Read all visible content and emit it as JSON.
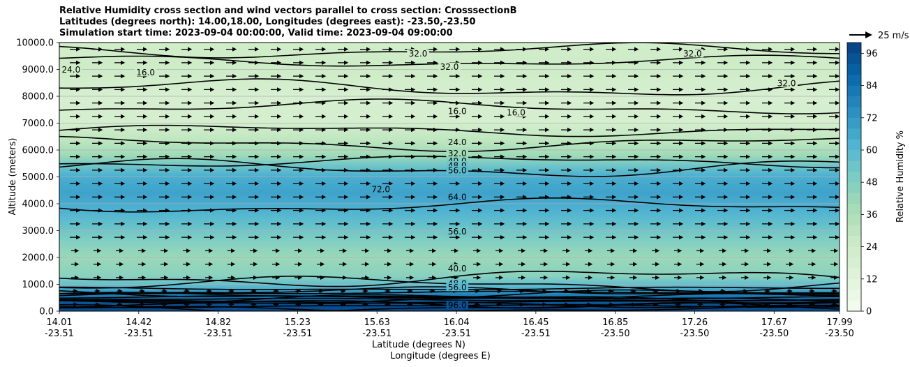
{
  "chart_data": {
    "type": "contour",
    "title_lines": [
      "Relative Humidity cross section and wind vectors parallel to cross section: CrosssectionB",
      "Latitudes (degrees north): 14.00,18.00, Longitudes (degrees east): -23.50,-23.50",
      "Simulation start time: 2023-09-04 00:00:00, Valid time: 2023-09-04 09:00:00"
    ],
    "ylabel": "Altitude (meters)",
    "xlabel_lines": [
      "Latitude (degrees N)",
      "Longitude (degrees E)"
    ],
    "ylim": [
      0,
      10000
    ],
    "y_ticks": [
      0,
      1000,
      2000,
      3000,
      4000,
      5000,
      6000,
      7000,
      8000,
      9000,
      10000
    ],
    "y_tick_labels": [
      "0.0",
      "1000.0",
      "2000.0",
      "3000.0",
      "4000.0",
      "5000.0",
      "6000.0",
      "7000.0",
      "8000.0",
      "9000.0",
      "10000.0"
    ],
    "x_ticks": [
      {
        "lat": "14.01",
        "lon": "-23.51"
      },
      {
        "lat": "14.42",
        "lon": "-23.51"
      },
      {
        "lat": "14.82",
        "lon": "-23.51"
      },
      {
        "lat": "15.23",
        "lon": "-23.51"
      },
      {
        "lat": "15.63",
        "lon": "-23.51"
      },
      {
        "lat": "16.04",
        "lon": "-23.51"
      },
      {
        "lat": "16.45",
        "lon": "-23.51"
      },
      {
        "lat": "16.85",
        "lon": "-23.50"
      },
      {
        "lat": "17.26",
        "lon": "-23.50"
      },
      {
        "lat": "17.67",
        "lon": "-23.50"
      },
      {
        "lat": "17.99",
        "lon": "-23.50"
      }
    ],
    "x_tick_fraction": [
      0,
      0.1018,
      0.2036,
      0.3054,
      0.4072,
      0.509,
      0.6108,
      0.7126,
      0.8144,
      0.9162,
      1.0
    ],
    "rh_profile": [
      {
        "alt": 0,
        "rh": 98
      },
      {
        "alt": 300,
        "rh": 94
      },
      {
        "alt": 600,
        "rh": 80
      },
      {
        "alt": 900,
        "rh": 60
      },
      {
        "alt": 1300,
        "rh": 46
      },
      {
        "alt": 2000,
        "rh": 41
      },
      {
        "alt": 2600,
        "rh": 48
      },
      {
        "alt": 3200,
        "rh": 56
      },
      {
        "alt": 3800,
        "rh": 63
      },
      {
        "alt": 4400,
        "rh": 68
      },
      {
        "alt": 5000,
        "rh": 64
      },
      {
        "alt": 5400,
        "rh": 54
      },
      {
        "alt": 5800,
        "rh": 40
      },
      {
        "alt": 6400,
        "rh": 29
      },
      {
        "alt": 7000,
        "rh": 20
      },
      {
        "alt": 8000,
        "rh": 19
      },
      {
        "alt": 9000,
        "rh": 24
      },
      {
        "alt": 10000,
        "rh": 22
      }
    ],
    "contour_levels": [
      8,
      16,
      24,
      32,
      40,
      48,
      56,
      64,
      72,
      80,
      88,
      96
    ],
    "contour_labels": [
      {
        "text": "16.0",
        "lat": "16.04",
        "alt": 7450
      },
      {
        "text": "24.0",
        "lat": "16.04",
        "alt": 6300
      },
      {
        "text": "32.0",
        "lat": "16.04",
        "alt": 5880
      },
      {
        "text": "40.0",
        "lat": "16.04",
        "alt": 5600
      },
      {
        "text": "48.0",
        "lat": "16.04",
        "alt": 5430
      },
      {
        "text": "56.0",
        "lat": "16.04",
        "alt": 5250
      },
      {
        "text": "64.0",
        "lat": "16.04",
        "alt": 4260
      },
      {
        "text": "56.0",
        "lat": "16.04",
        "alt": 2980
      },
      {
        "text": "40.0",
        "lat": "16.04",
        "alt": 1600
      },
      {
        "text": "48.0",
        "lat": "16.04",
        "alt": 1040
      },
      {
        "text": "56.0",
        "lat": "16.04",
        "alt": 900
      },
      {
        "text": "96.0",
        "lat": "16.04",
        "alt": 240
      },
      {
        "text": "32.0",
        "lat": "15.84",
        "alt": 9600
      },
      {
        "text": "32.0",
        "lat": "16.00",
        "alt": 9100
      },
      {
        "text": "16.0",
        "lat": "14.45",
        "alt": 8900
      },
      {
        "text": "24.0",
        "lat": "14.07",
        "alt": 9000
      },
      {
        "text": "16.0",
        "lat": "16.34",
        "alt": 7400
      },
      {
        "text": "32.0",
        "lat": "17.24",
        "alt": 9600
      },
      {
        "text": "32.0",
        "lat": "17.72",
        "alt": 8500
      },
      {
        "text": "72.0",
        "lat": "15.65",
        "alt": 4550
      }
    ],
    "wind_vectors": {
      "direction": "parallel, south-to-north",
      "reference_label": "25 m/s"
    },
    "colorbar": {
      "label": "Relative Humidity %",
      "ticks": [
        0,
        12,
        24,
        36,
        48,
        60,
        72,
        84,
        96
      ],
      "range": [
        0,
        100
      ],
      "colors": [
        "#f7fcf0",
        "#e0f3db",
        "#ccebc5",
        "#a8ddb5",
        "#7bccc4",
        "#4eb3d3",
        "#2b8cbe",
        "#0868ac",
        "#084081"
      ]
    }
  }
}
